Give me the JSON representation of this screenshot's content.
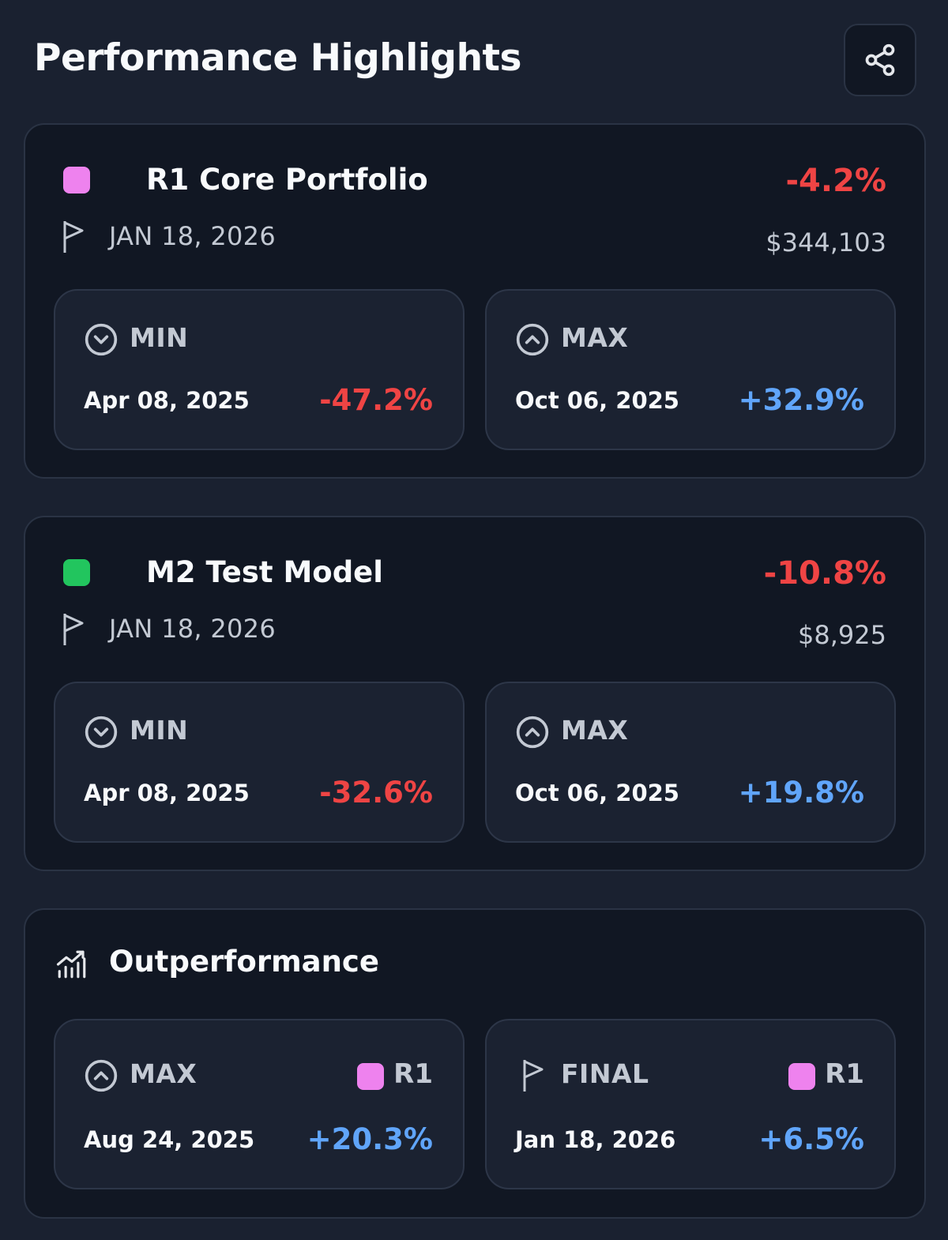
{
  "page_title": "Performance Highlights",
  "colors": {
    "r1": "#ee82ee",
    "m2": "#22c55e",
    "negative": "#ef4444",
    "positive": "#60a5fa"
  },
  "icons": {
    "share": "share-icon",
    "flag": "flag-icon",
    "min": "chevron-down-circle-icon",
    "max": "chevron-up-circle-icon",
    "outperformance": "bar-chart-trend-icon"
  },
  "portfolios": [
    {
      "name": "R1 Core Portfolio",
      "change": "-4.2%",
      "date": "JAN 18, 2026",
      "value": "$344,103",
      "min": {
        "label": "MIN",
        "date": "Apr 08, 2025",
        "value": "-47.2%"
      },
      "max": {
        "label": "MAX",
        "date": "Oct 06, 2025",
        "value": "+32.9%"
      }
    },
    {
      "name": "M2 Test Model",
      "change": "-10.8%",
      "date": "JAN 18, 2026",
      "value": "$8,925",
      "min": {
        "label": "MIN",
        "date": "Apr 08, 2025",
        "value": "-32.6%"
      },
      "max": {
        "label": "MAX",
        "date": "Oct 06, 2025",
        "value": "+19.8%"
      }
    }
  ],
  "outperformance": {
    "title": "Outperformance",
    "max": {
      "label": "MAX",
      "tag": "R1",
      "date": "Aug 24, 2025",
      "value": "+20.3%"
    },
    "final": {
      "label": "FINAL",
      "tag": "R1",
      "date": "Jan 18, 2026",
      "value": "+6.5%"
    }
  }
}
